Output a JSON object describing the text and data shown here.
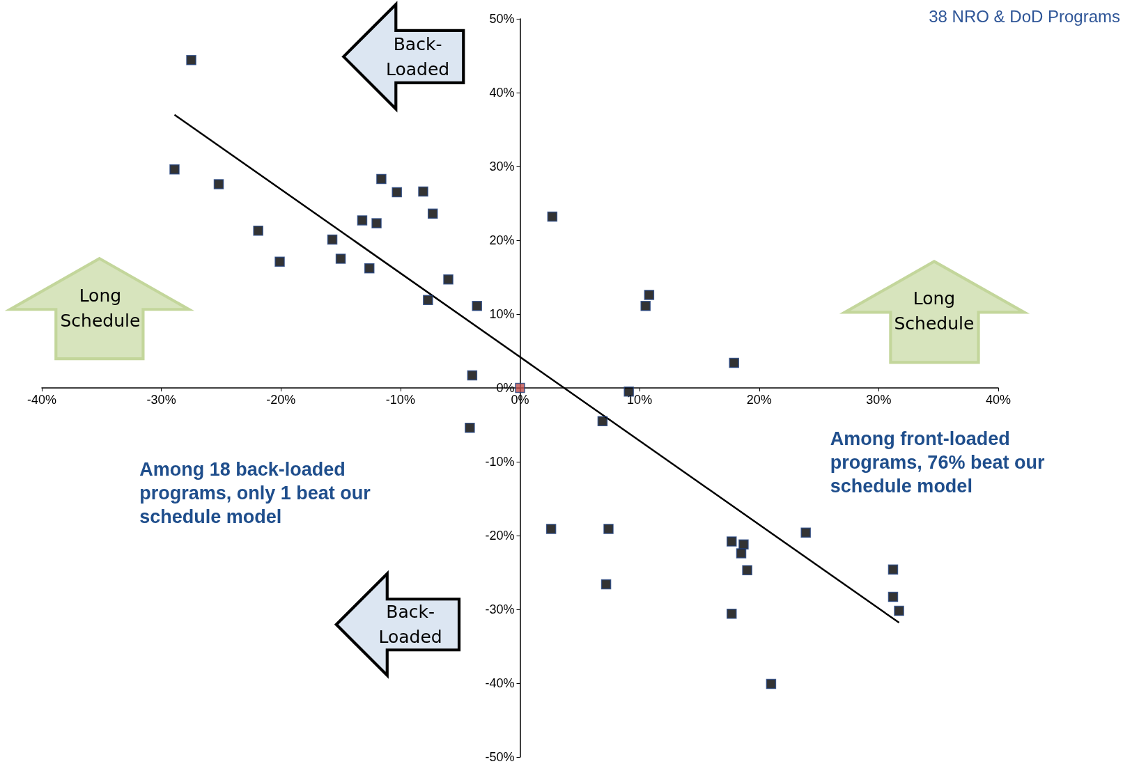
{
  "chart_data": {
    "type": "scatter",
    "title": "38 NRO & DoD Programs",
    "annotations": [
      "Among 18 back-loaded programs, only 1 beat our schedule model",
      "Among front-loaded programs, 76% beat our schedule model",
      "Back-Loaded",
      "Back-Loaded",
      "Long Schedule",
      "Long Schedule"
    ],
    "marker": "square",
    "xlim": [
      -40,
      40
    ],
    "xticks": [
      {
        "value": -40,
        "label": "-40%"
      },
      {
        "value": -30,
        "label": "-30%"
      },
      {
        "value": -20,
        "label": "-20%"
      },
      {
        "value": -10,
        "label": "-10%"
      },
      {
        "value": 0,
        "label": "0%"
      },
      {
        "value": 10,
        "label": "10%"
      },
      {
        "value": 20,
        "label": "20%"
      },
      {
        "value": 30,
        "label": "30%"
      },
      {
        "value": 40,
        "label": "40%"
      }
    ],
    "ylim": [
      -50,
      50
    ],
    "yticks": [
      {
        "value": -50,
        "label": "-50%"
      },
      {
        "value": -40,
        "label": "-40%"
      },
      {
        "value": -30,
        "label": "-30%"
      },
      {
        "value": -20,
        "label": "-20%"
      },
      {
        "value": -10,
        "label": "-10%"
      },
      {
        "value": 0,
        "label": "0%"
      },
      {
        "value": 10,
        "label": "10%"
      },
      {
        "value": 20,
        "label": "20%"
      },
      {
        "value": 30,
        "label": "30%"
      },
      {
        "value": 40,
        "label": "40%"
      },
      {
        "value": 50,
        "label": "50%"
      }
    ],
    "series": [
      {
        "color": "#000000",
        "x": [
          -27.5,
          -28.9,
          -25.2,
          -21.9,
          -20.1,
          -15.7,
          -15.0,
          -13.2,
          -12.6,
          -12.0,
          -11.6,
          -10.3,
          -8.1,
          -7.3,
          -6.0,
          -7.7,
          -3.6,
          -4.0,
          -4.2,
          2.7,
          10.8,
          10.5,
          17.9,
          9.1,
          6.9,
          2.6,
          7.4,
          7.2,
          17.7,
          18.7,
          18.5,
          19.0,
          17.7,
          21.0,
          23.9,
          31.2,
          31.2,
          31.7
        ],
        "values": [
          44.4,
          29.6,
          27.6,
          21.3,
          17.1,
          20.1,
          17.5,
          22.7,
          16.2,
          22.3,
          28.3,
          26.5,
          26.6,
          23.6,
          14.7,
          11.9,
          11.1,
          1.7,
          -5.4,
          23.2,
          12.6,
          11.1,
          3.4,
          -0.5,
          -4.5,
          -19.1,
          -19.1,
          -26.6,
          -20.8,
          -21.2,
          -22.4,
          -24.7,
          -30.6,
          -40.1,
          -19.6,
          -24.6,
          -28.3,
          -30.2
        ]
      },
      {
        "color": "#c0504d",
        "x": [
          0
        ],
        "values": [
          0
        ]
      },
      {
        "type": "line",
        "color": "#000000",
        "marker": "none",
        "x": [
          -28.9,
          31.7
        ],
        "values": [
          37.0,
          -31.8
        ]
      }
    ]
  }
}
